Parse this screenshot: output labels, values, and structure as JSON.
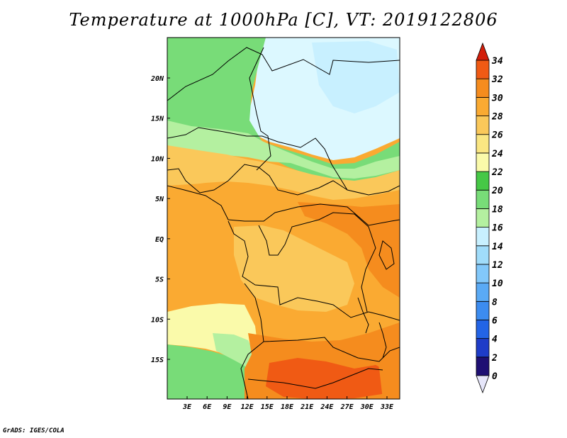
{
  "title": "Temperature at 1000hPa [C], VT: 2019122806",
  "credit": "GrADS: IGES/COLA",
  "map": {
    "lat_labels": [
      "20N",
      "15N",
      "10N",
      "5N",
      "EQ",
      "5S",
      "10S",
      "15S"
    ],
    "lon_labels": [
      "3E",
      "6E",
      "9E",
      "12E",
      "15E",
      "18E",
      "21E",
      "24E",
      "27E",
      "30E",
      "33E"
    ]
  },
  "colorbar": {
    "levels": [
      "0",
      "2",
      "4",
      "6",
      "8",
      "10",
      "12",
      "14",
      "16",
      "18",
      "20",
      "22",
      "24",
      "26",
      "28",
      "30",
      "32",
      "34"
    ],
    "colors": [
      "#1e0f73",
      "#1e3cc8",
      "#2364e6",
      "#3c8cf0",
      "#5aaaf5",
      "#82c8fa",
      "#a0dcfa",
      "#c8f0ff",
      "#b4f0a0",
      "#78dc78",
      "#46c846",
      "#fafaaa",
      "#fae682",
      "#fac85a",
      "#faaa32",
      "#f58c1e",
      "#f05a14",
      "#dc2d0a"
    ],
    "under_color": "#e6e6fa",
    "over_color": "#d21e0a"
  },
  "field_colors": {
    "sahara": "#dcf8ff",
    "sahara_light": "#c8f0ff",
    "cool_green": "#46c846",
    "green": "#78dc78",
    "light_green": "#b4f0a0",
    "pale_yellow": "#fafaaa",
    "yellow": "#fae682",
    "light_orange": "#fac85a",
    "orange": "#faaa32",
    "dark_orange": "#f58c1e",
    "red_orange": "#f05a14"
  }
}
